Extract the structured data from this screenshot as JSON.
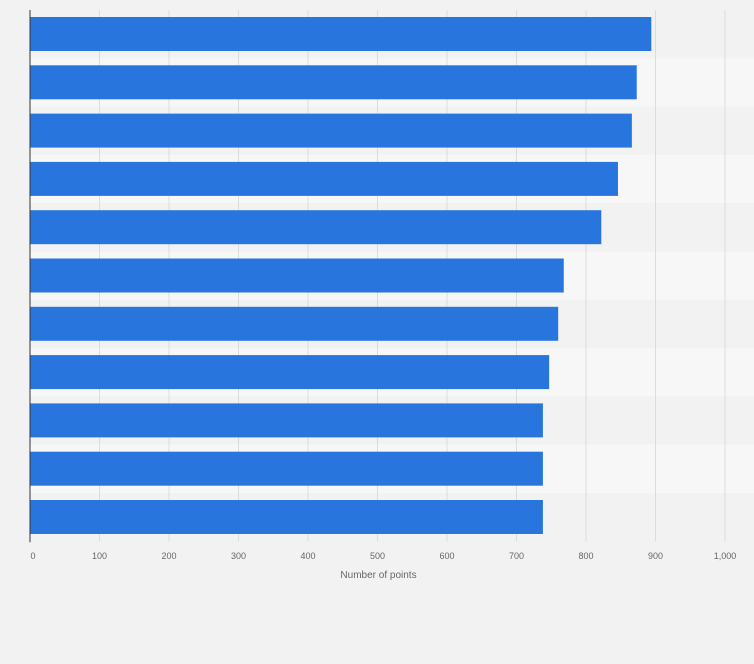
{
  "chart_data": {
    "type": "bar",
    "orientation": "horizontal",
    "categories": [
      "",
      "",
      "",
      "",
      "",
      "",
      "",
      "",
      "",
      "",
      ""
    ],
    "values": [
      894,
      873,
      866,
      846,
      822,
      768,
      760,
      747,
      738,
      738,
      738
    ],
    "xlabel": "Number of points",
    "xlim": [
      0,
      1000
    ],
    "xticks": [
      0,
      100,
      200,
      300,
      400,
      500,
      600,
      700,
      800,
      900,
      1000
    ],
    "xtick_labels": [
      "0",
      "100",
      "200",
      "300",
      "400",
      "500",
      "600",
      "700",
      "800",
      "900",
      "1,000"
    ],
    "grid": true,
    "legend": "none",
    "colors": {
      "bar": "#2876dd",
      "background": "#f2f2f2",
      "band_light": "#f7f7f7",
      "grid": "#dcdcdc",
      "axis": "#333333",
      "tick_text": "#666666"
    }
  }
}
